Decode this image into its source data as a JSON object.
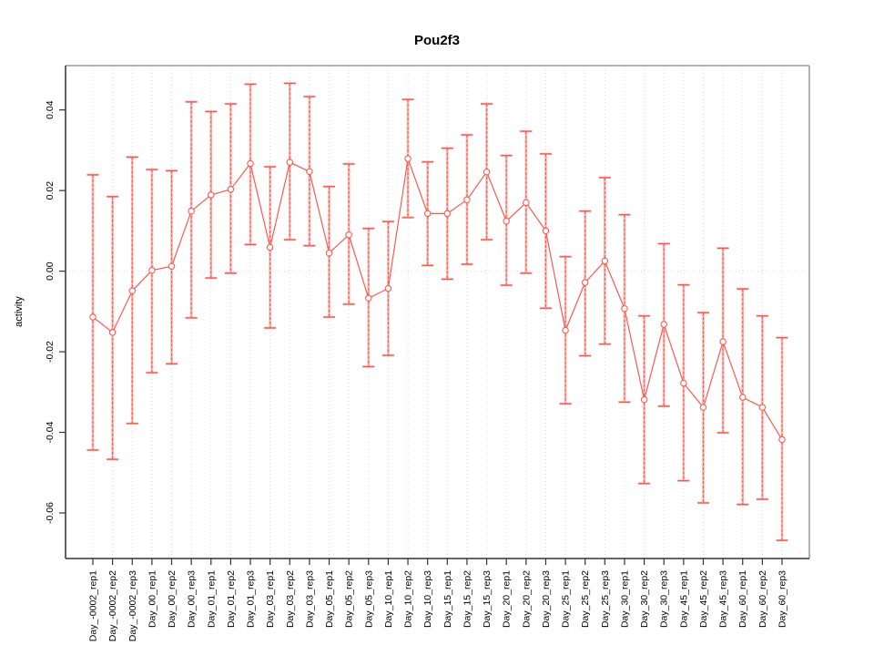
{
  "chart_data": {
    "type": "line",
    "title": "Pou2f3",
    "xlabel": "",
    "ylabel": "activity",
    "legend": "none",
    "grid": "vertical-dotted-per-category-plus-dotted-zero-line",
    "marker": "open-circle",
    "error_bars": true,
    "ylim": [
      -0.0713,
      0.051
    ],
    "yticks": [
      {
        "value": 0.04,
        "label": "0.04"
      },
      {
        "value": 0.02,
        "label": "0.02"
      },
      {
        "value": 0.0,
        "label": "0.00"
      },
      {
        "value": -0.02,
        "label": "-0.02"
      },
      {
        "value": -0.04,
        "label": "-0.04"
      },
      {
        "value": -0.06,
        "label": "-0.06"
      }
    ],
    "points": [
      {
        "label": "Day_-0002_rep1",
        "value": -0.0114,
        "lo": -0.0444,
        "hi": 0.0239
      },
      {
        "label": "Day_-0002_rep2",
        "value": -0.0152,
        "lo": -0.0467,
        "hi": 0.0185
      },
      {
        "label": "Day_-0002_rep3",
        "value": -0.0049,
        "lo": -0.0378,
        "hi": 0.0283
      },
      {
        "label": "Day_00_rep1",
        "value": 0.0002,
        "lo": -0.0252,
        "hi": 0.0252
      },
      {
        "label": "Day_00_rep2",
        "value": 0.0012,
        "lo": -0.023,
        "hi": 0.0249
      },
      {
        "label": "Day_00_rep3",
        "value": 0.0149,
        "lo": -0.0116,
        "hi": 0.042
      },
      {
        "label": "Day_01_rep1",
        "value": 0.0189,
        "lo": -0.0017,
        "hi": 0.0396
      },
      {
        "label": "Day_01_rep2",
        "value": 0.0203,
        "lo": -0.0005,
        "hi": 0.0415
      },
      {
        "label": "Day_01_rep3",
        "value": 0.0267,
        "lo": 0.0066,
        "hi": 0.0464
      },
      {
        "label": "Day_03_rep1",
        "value": 0.0059,
        "lo": -0.0141,
        "hi": 0.0259
      },
      {
        "label": "Day_03_rep2",
        "value": 0.027,
        "lo": 0.0078,
        "hi": 0.0466
      },
      {
        "label": "Day_03_rep3",
        "value": 0.0247,
        "lo": 0.0063,
        "hi": 0.0433
      },
      {
        "label": "Day_05_rep1",
        "value": 0.0045,
        "lo": -0.0114,
        "hi": 0.021
      },
      {
        "label": "Day_05_rep2",
        "value": 0.009,
        "lo": -0.0082,
        "hi": 0.0266
      },
      {
        "label": "Day_05_rep3",
        "value": -0.0067,
        "lo": -0.0237,
        "hi": 0.0106
      },
      {
        "label": "Day_10_rep1",
        "value": -0.0043,
        "lo": -0.0209,
        "hi": 0.0123
      },
      {
        "label": "Day_10_rep2",
        "value": 0.0279,
        "lo": 0.0133,
        "hi": 0.0426
      },
      {
        "label": "Day_10_rep3",
        "value": 0.0143,
        "lo": 0.0014,
        "hi": 0.0271
      },
      {
        "label": "Day_15_rep1",
        "value": 0.0143,
        "lo": -0.002,
        "hi": 0.0305
      },
      {
        "label": "Day_15_rep2",
        "value": 0.0177,
        "lo": 0.0017,
        "hi": 0.0338
      },
      {
        "label": "Day_15_rep3",
        "value": 0.0246,
        "lo": 0.0078,
        "hi": 0.0415
      },
      {
        "label": "Day_20_rep1",
        "value": 0.0124,
        "lo": -0.0035,
        "hi": 0.0287
      },
      {
        "label": "Day_20_rep2",
        "value": 0.017,
        "lo": -0.0005,
        "hi": 0.0347
      },
      {
        "label": "Day_20_rep3",
        "value": 0.01,
        "lo": -0.0092,
        "hi": 0.0291
      },
      {
        "label": "Day_25_rep1",
        "value": -0.0147,
        "lo": -0.0329,
        "hi": 0.0036
      },
      {
        "label": "Day_25_rep2",
        "value": -0.0028,
        "lo": -0.021,
        "hi": 0.0149
      },
      {
        "label": "Day_25_rep3",
        "value": 0.0025,
        "lo": -0.0181,
        "hi": 0.0232
      },
      {
        "label": "Day_30_rep1",
        "value": -0.0093,
        "lo": -0.0325,
        "hi": 0.014
      },
      {
        "label": "Day_30_rep2",
        "value": -0.0319,
        "lo": -0.0527,
        "hi": -0.0111
      },
      {
        "label": "Day_30_rep3",
        "value": -0.0132,
        "lo": -0.0335,
        "hi": 0.0068
      },
      {
        "label": "Day_45_rep1",
        "value": -0.0278,
        "lo": -0.052,
        "hi": -0.0034
      },
      {
        "label": "Day_45_rep2",
        "value": -0.0338,
        "lo": -0.0575,
        "hi": -0.0103
      },
      {
        "label": "Day_45_rep3",
        "value": -0.0175,
        "lo": -0.0401,
        "hi": 0.0057
      },
      {
        "label": "Day_60_rep1",
        "value": -0.0313,
        "lo": -0.0579,
        "hi": -0.0044
      },
      {
        "label": "Day_60_rep2",
        "value": -0.0338,
        "lo": -0.0566,
        "hi": -0.0111
      },
      {
        "label": "Day_60_rep3",
        "value": -0.0418,
        "lo": -0.0668,
        "hi": -0.0165
      }
    ],
    "style": {
      "series_line": "#fb5a50",
      "marker_stroke": "#fb5a50",
      "marker_fill": "#ffffff",
      "errbar_pale": "#ffb4ae",
      "errbar_dash": "#f2554d",
      "gridline": "#d9d9d9",
      "zero_line": "#dcdcdc",
      "box_light": "#999999",
      "axis_dark": "#333333",
      "text": "#000000"
    }
  }
}
